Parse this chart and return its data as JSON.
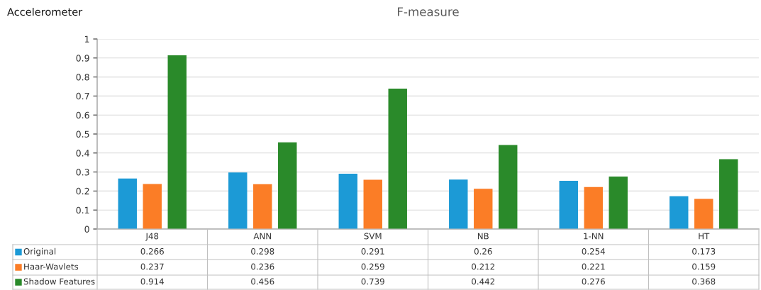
{
  "chart_data": {
    "type": "bar",
    "title": "F-measure",
    "annotations": [
      "Accelerometer"
    ],
    "categories": [
      "J48",
      "ANN",
      "SVM",
      "NB",
      "1-NN",
      "HT"
    ],
    "series": [
      {
        "name": "Original",
        "color": "#1c9ad6",
        "values": [
          0.266,
          0.298,
          0.291,
          0.26,
          0.254,
          0.173
        ]
      },
      {
        "name": "Haar-Wavlets",
        "color": "#fb7d26",
        "values": [
          0.237,
          0.236,
          0.259,
          0.212,
          0.221,
          0.159
        ]
      },
      {
        "name": "Shadow Features",
        "color": "#2a8a2a",
        "values": [
          0.914,
          0.456,
          0.739,
          0.442,
          0.276,
          0.368
        ]
      }
    ],
    "ylim": [
      0,
      1
    ],
    "yticks": [
      0,
      0.1,
      0.2,
      0.3,
      0.4,
      0.5,
      0.6,
      0.7,
      0.8,
      0.9,
      1
    ],
    "grid": "y",
    "data_labels": true,
    "legend": "bottom"
  }
}
